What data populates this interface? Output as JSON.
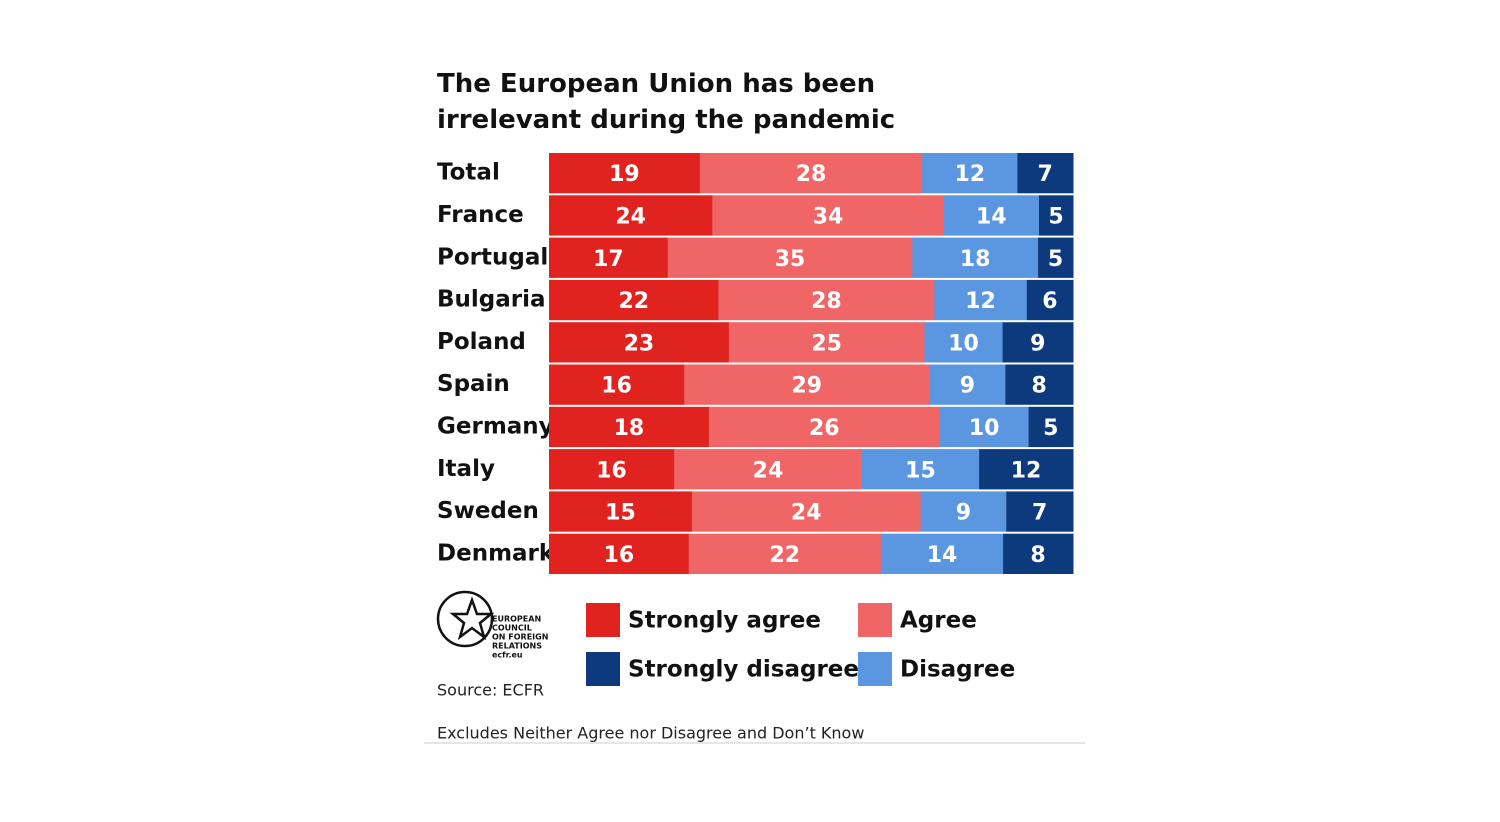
{
  "chart_data": {
    "type": "stacked-bar",
    "orientation": "horizontal",
    "title": "The European Union has been irrelevant during the pandemic",
    "categories": [
      "Total",
      "France",
      "Portugal",
      "Bulgaria",
      "Poland",
      "Spain",
      "Germany",
      "Italy",
      "Sweden",
      "Denmark"
    ],
    "series": [
      {
        "name": "Strongly agree",
        "color": "#e0231f",
        "values": [
          19,
          24,
          17,
          22,
          23,
          16,
          18,
          16,
          15,
          16
        ]
      },
      {
        "name": "Agree",
        "color": "#f06565",
        "values": [
          28,
          34,
          35,
          28,
          25,
          29,
          26,
          24,
          24,
          22
        ]
      },
      {
        "name": "Disagree",
        "color": "#5b97e1",
        "values": [
          12,
          14,
          18,
          12,
          10,
          9,
          10,
          15,
          9,
          14
        ]
      },
      {
        "name": "Strongly disagree",
        "color": "#0c3a7d",
        "values": [
          7,
          5,
          5,
          6,
          9,
          8,
          5,
          12,
          7,
          8
        ]
      }
    ],
    "logo": [
      "EUROPEAN",
      "COUNCIL",
      "ON FOREIGN",
      "RELATIONS",
      "ecfr.eu"
    ],
    "source": "Source: ECFR",
    "note": "Excludes Neither Agree nor Disagree and Don’t Know"
  }
}
